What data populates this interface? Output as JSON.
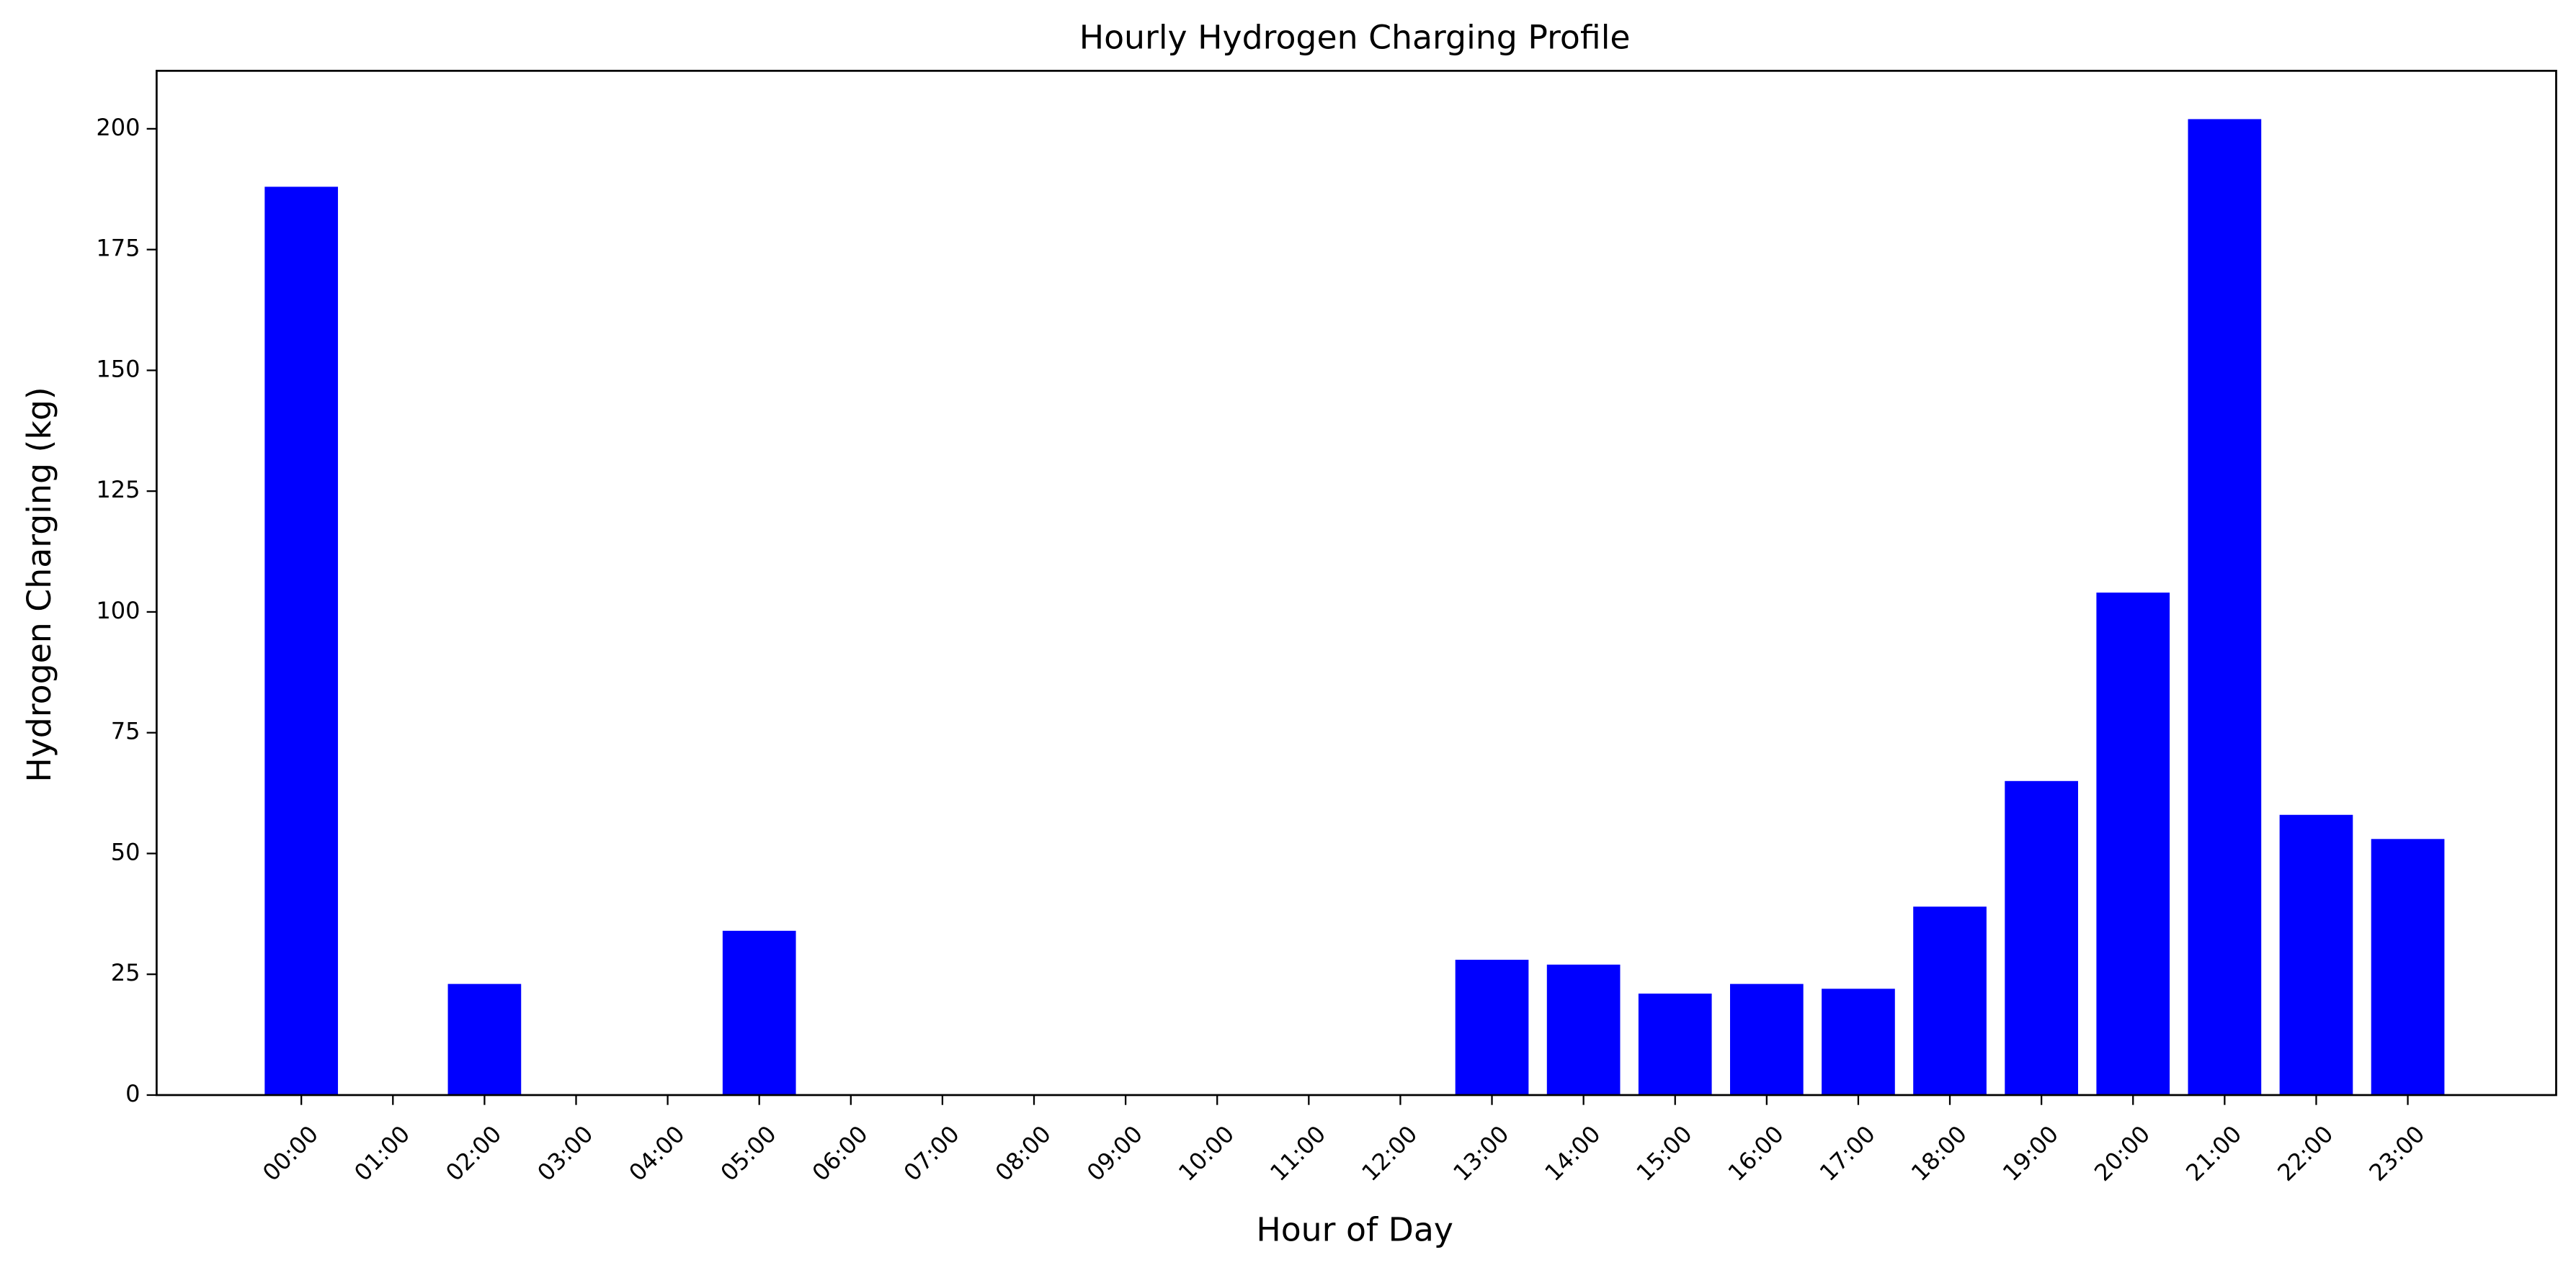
{
  "chart_data": {
    "type": "bar",
    "title": "Hourly Hydrogen Charging Profile",
    "x_label": "Hour of Day",
    "y_label": "Hydrogen Charging (kg)",
    "categories": [
      "00:00",
      "01:00",
      "02:00",
      "03:00",
      "04:00",
      "05:00",
      "06:00",
      "07:00",
      "08:00",
      "09:00",
      "10:00",
      "11:00",
      "12:00",
      "13:00",
      "14:00",
      "15:00",
      "16:00",
      "17:00",
      "18:00",
      "19:00",
      "20:00",
      "21:00",
      "22:00",
      "23:00"
    ],
    "values": [
      188,
      0,
      23,
      0,
      0,
      34,
      0,
      0,
      0,
      0,
      0,
      0,
      0,
      28,
      27,
      21,
      23,
      22,
      39,
      65,
      104,
      202,
      58,
      53
    ],
    "color": "#0000ff",
    "ylim": [
      0,
      212
    ],
    "yticks": [
      0,
      25,
      50,
      75,
      100,
      125,
      150,
      175,
      200
    ],
    "grid": false
  }
}
